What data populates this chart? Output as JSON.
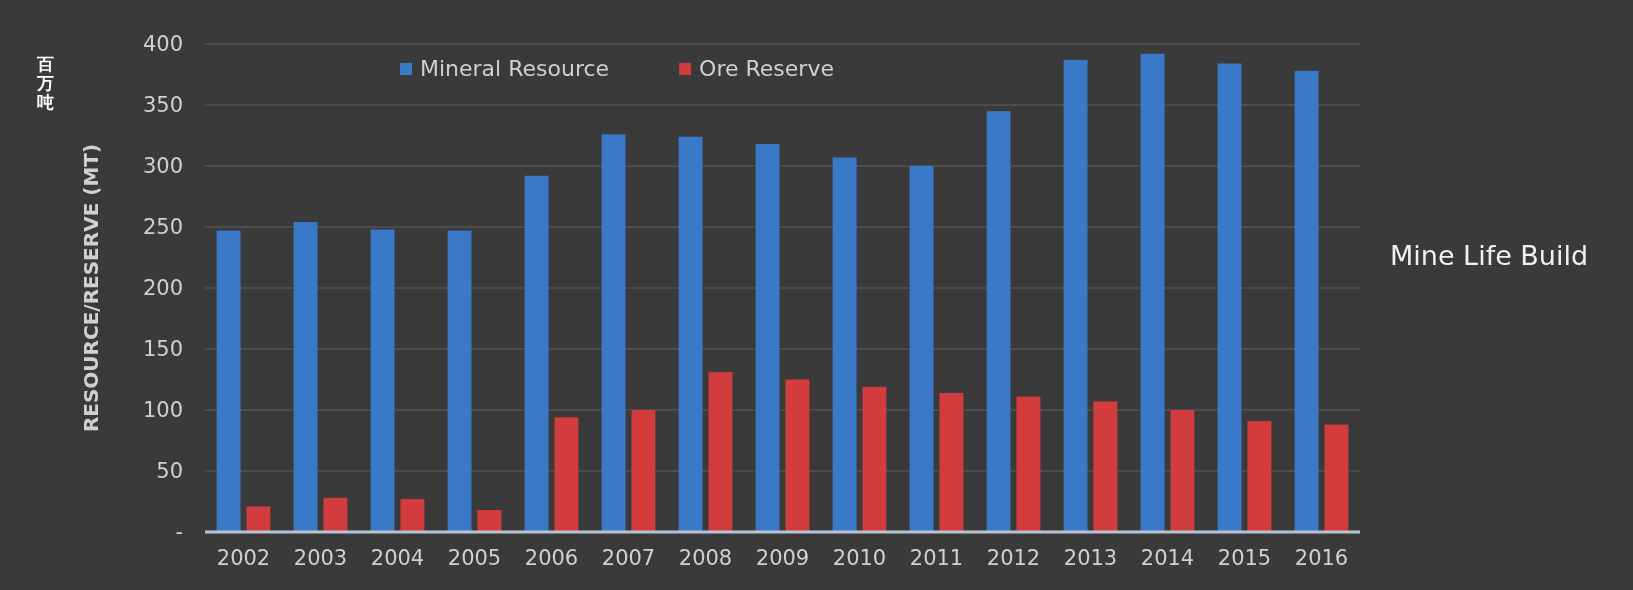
{
  "chart_data": {
    "type": "bar",
    "ylabel": "RESOURCE/RESERVE (MT)",
    "annotations": [
      "百万吨",
      "Mine Life Build"
    ],
    "categories": [
      "2002",
      "2003",
      "2004",
      "2005",
      "2006",
      "2007",
      "2008",
      "2009",
      "2010",
      "2011",
      "2012",
      "2013",
      "2014",
      "2015",
      "2016"
    ],
    "series": [
      {
        "name": "Mineral Resource",
        "color": "#3a78c8",
        "values": [
          247,
          254,
          248,
          247,
          292,
          326,
          324,
          318,
          307,
          300,
          345,
          387,
          392,
          384,
          378
        ]
      },
      {
        "name": "Ore Reserve",
        "color": "#d23c3c",
        "values": [
          21,
          28,
          27,
          18,
          94,
          100,
          131,
          125,
          119,
          114,
          111,
          107,
          100,
          91,
          88
        ]
      }
    ],
    "ylim": [
      0,
      400
    ],
    "yticks": [
      {
        "value": 0,
        "label": "-"
      },
      50,
      100,
      150,
      200,
      250,
      300,
      350,
      400
    ],
    "grid": "y",
    "legend": "top"
  }
}
